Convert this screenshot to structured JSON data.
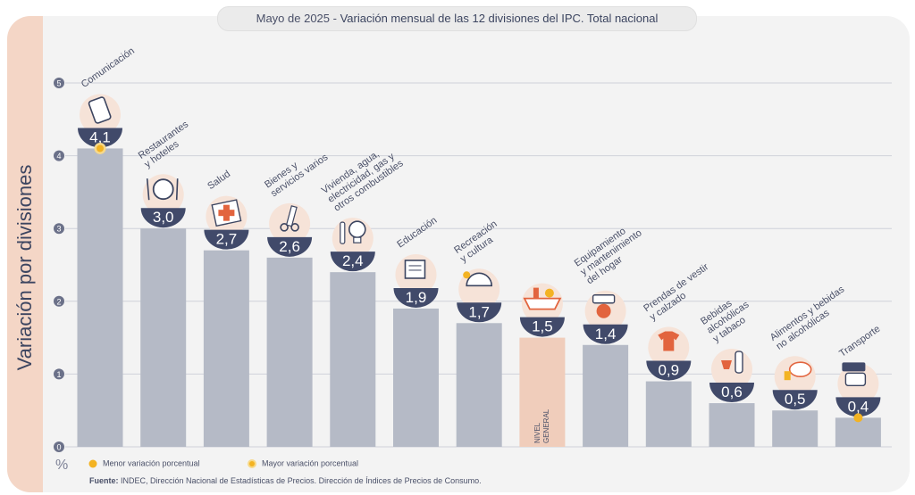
{
  "header": {
    "date": "Mayo de 2025",
    "separator": " - ",
    "title": "Variación mensual de las 12 divisiones del IPC. Total nacional"
  },
  "colors": {
    "bar": "#b5bac6",
    "highlight_bar": "#f0cdbb",
    "circle": "#414a6a",
    "grid": "#cfd2da",
    "marker": "#f3b323"
  },
  "chart_data": {
    "type": "bar",
    "ylabel": "Variación por divisiones",
    "yunit": "%",
    "ylim": [
      0,
      5
    ],
    "yticks": [
      "0",
      "1",
      "2",
      "3",
      "4",
      "5"
    ],
    "categories": [
      "Comunicación",
      "Restaurantes y hoteles",
      "Salud",
      "Bienes y servicios varios",
      "Vivienda, agua, electricidad, gas y otros combustibles",
      "Educación",
      "Recreación y cultura",
      "NIVEL GENERAL",
      "Equipamiento y mantenimiento del hogar",
      "Prendas de vestir y calzado",
      "Bebidas alcohólicas y tabaco",
      "Alimentos y bebidas no alcohólicas",
      "Transporte"
    ],
    "values": [
      4.1,
      3.0,
      2.7,
      2.6,
      2.4,
      1.9,
      1.7,
      1.5,
      1.4,
      0.9,
      0.6,
      0.5,
      0.4
    ],
    "value_labels": [
      "4,1",
      "3,0",
      "2,7",
      "2,6",
      "2,4",
      "1,9",
      "1,7",
      "1,5",
      "1,4",
      "0,9",
      "0,6",
      "0,5",
      "0,4"
    ],
    "label_lines": [
      [
        "Comunicación"
      ],
      [
        "Restaurantes",
        "y hoteles"
      ],
      [
        "Salud"
      ],
      [
        "Bienes y",
        "servicios varios"
      ],
      [
        "Vivienda, agua,",
        "electricidad, gas y",
        "otros combustibles"
      ],
      [
        "Educación"
      ],
      [
        "Recreación",
        "y cultura"
      ],
      [
        "NIVEL",
        "GENERAL"
      ],
      [
        "Equipamiento",
        "y mantenimiento",
        "del hogar"
      ],
      [
        "Prendas de vestir",
        "y calzado"
      ],
      [
        "Bebidas",
        "alcohólicas",
        "y tabaco"
      ],
      [
        "Alimentos y bebidas",
        "no alcohólicas"
      ],
      [
        "Transporte"
      ]
    ],
    "icons": [
      "phone-icon",
      "cutlery-icon",
      "medical-cross-icon",
      "scissors-comb-icon",
      "lightbulb-tools-icon",
      "books-icon",
      "beach-umbrella-icon",
      "basket-icon",
      "appliances-icon",
      "clothing-icon",
      "bottle-icon",
      "groceries-icon",
      "bus-icon"
    ],
    "highlight_index": 7,
    "max_index": 0,
    "min_index": 12,
    "legend": [
      {
        "label": "Menor variación porcentual",
        "kind": "min"
      },
      {
        "label": "Mayor variación porcentual",
        "kind": "max"
      }
    ]
  },
  "footer": {
    "source_label": "Fuente:",
    "source_text": " INDEC, Dirección Nacional de Estadísticas de Precios. Dirección de Índices de Precios de Consumo."
  }
}
